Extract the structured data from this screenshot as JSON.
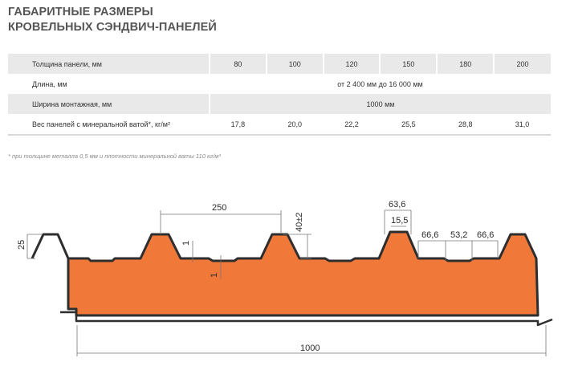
{
  "title": {
    "line1": "ГАБАРИТНЫЕ РАЗМЕРЫ",
    "line2": "КРОВЕЛЬНЫХ СЭНДВИЧ-ПАНЕЛЕЙ"
  },
  "table": {
    "thickness": {
      "label": "Толщина панели, мм",
      "values": [
        "80",
        "100",
        "120",
        "150",
        "180",
        "200"
      ]
    },
    "length": {
      "label": "Длина, мм",
      "value": "от 2 400 мм до 16 000 мм"
    },
    "width": {
      "label": "Ширина монтажная, мм",
      "value": "1000 мм"
    },
    "weight": {
      "label": "Вес панелей с минеральной ватой*, кг/м²",
      "values": [
        "17,8",
        "20,0",
        "22,2",
        "25,5",
        "28,8",
        "31,0"
      ]
    }
  },
  "note": "*  при толщине металла 0,5 мм и плотности минеральной ваты 110 кг/м³",
  "drawing": {
    "panel_fill": "#f0793a",
    "outline": "#2e2e2e",
    "dims": {
      "d250": "250",
      "d40": "40±2",
      "d63": "63,6",
      "d15": "15,5",
      "d66a": "66,6",
      "d53": "53,2",
      "d66b": "66,6",
      "d25": "25",
      "d1a": "1",
      "d1b": "1",
      "d1000": "1000"
    }
  }
}
